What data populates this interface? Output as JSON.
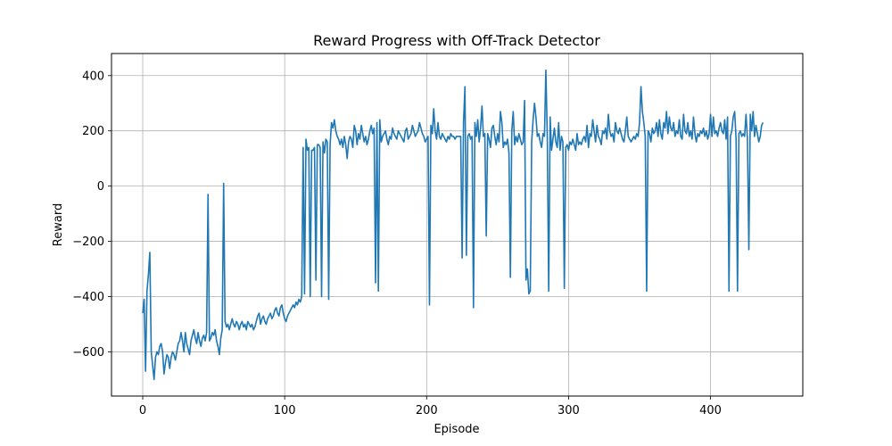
{
  "chart_data": {
    "type": "line",
    "title": "Reward Progress with Off-Track Detector",
    "xlabel": "Episode",
    "ylabel": "Reward",
    "xlim": [
      -22,
      465
    ],
    "ylim": [
      -760,
      480
    ],
    "x_ticks": [
      0,
      100,
      200,
      300,
      400
    ],
    "x_tick_labels": [
      "0",
      "100",
      "200",
      "300",
      "400"
    ],
    "y_ticks": [
      -600,
      -400,
      -200,
      0,
      200,
      400
    ],
    "y_tick_labels": [
      "−600",
      "−400",
      "−200",
      "0",
      "200",
      "400"
    ],
    "grid": true,
    "series": [
      {
        "color": "#1f77b4",
        "x_start": 0,
        "x_step": 1,
        "values": [
          -460,
          -410,
          -670,
          -380,
          -320,
          -240,
          -600,
          -650,
          -700,
          -620,
          -600,
          -610,
          -580,
          -570,
          -600,
          -680,
          -640,
          -610,
          -620,
          -660,
          -620,
          -600,
          -610,
          -630,
          -600,
          -570,
          -560,
          -530,
          -560,
          -600,
          -530,
          -570,
          -590,
          -610,
          -560,
          -540,
          -520,
          -550,
          -570,
          -530,
          -560,
          -580,
          -550,
          -540,
          -560,
          -530,
          -30,
          -560,
          -550,
          -530,
          -540,
          -520,
          -560,
          -580,
          -610,
          -550,
          -520,
          10,
          -490,
          -510,
          -500,
          -520,
          -500,
          -480,
          -500,
          -510,
          -490,
          -500,
          -520,
          -500,
          -490,
          -510,
          -500,
          -520,
          -490,
          -500,
          -510,
          -500,
          -520,
          -510,
          -490,
          -470,
          -460,
          -500,
          -480,
          -470,
          -490,
          -500,
          -480,
          -470,
          -460,
          -480,
          -470,
          -450,
          -440,
          -460,
          -470,
          -440,
          -430,
          -460,
          -480,
          -490,
          -470,
          -460,
          -450,
          -440,
          -430,
          -440,
          -420,
          -430,
          -410,
          -420,
          -400,
          140,
          -390,
          170,
          130,
          140,
          -400,
          130,
          130,
          140,
          -340,
          150,
          150,
          140,
          -400,
          160,
          120,
          170,
          160,
          -410,
          150,
          230,
          210,
          240,
          200,
          180,
          170,
          150,
          170,
          140,
          180,
          150,
          100,
          160,
          180,
          170,
          140,
          220,
          200,
          150,
          190,
          170,
          220,
          190,
          160,
          180,
          150,
          170,
          200,
          220,
          190,
          210,
          -350,
          230,
          -380,
          240,
          160,
          180,
          190,
          200,
          170,
          150,
          180,
          170,
          210,
          190,
          180,
          170,
          200,
          190,
          180,
          170,
          160,
          200,
          210,
          170,
          180,
          190,
          220,
          200,
          180,
          190,
          200,
          230,
          210,
          190,
          180,
          160,
          170,
          180,
          -430,
          220,
          190,
          280,
          200,
          170,
          230,
          180,
          170,
          190,
          180,
          170,
          160,
          180,
          170,
          190,
          180,
          180,
          170,
          180,
          180,
          180,
          180,
          -260,
          230,
          360,
          -250,
          180,
          190,
          170,
          180,
          -440,
          230,
          180,
          240,
          160,
          210,
          290,
          180,
          190,
          -180,
          190,
          170,
          140,
          210,
          220,
          180,
          150,
          190,
          160,
          270,
          230,
          140,
          160,
          150,
          170,
          120,
          -330,
          200,
          270,
          150,
          180,
          160,
          190,
          170,
          150,
          160,
          310,
          -340,
          -300,
          -390,
          -380,
          160,
          240,
          300,
          250,
          180,
          190,
          160,
          140,
          190,
          180,
          420,
          180,
          -380,
          250,
          130,
          170,
          210,
          160,
          140,
          230,
          130,
          180,
          160,
          -370,
          140,
          150,
          130,
          160,
          150,
          170,
          150,
          130,
          190,
          150,
          160,
          150,
          170,
          180,
          160,
          220,
          140,
          190,
          180,
          240,
          200,
          160,
          220,
          180,
          170,
          150,
          200,
          190,
          210,
          170,
          260,
          200,
          180,
          190,
          160,
          230,
          200,
          190,
          210,
          190,
          170,
          160,
          200,
          250,
          180,
          170,
          160,
          170,
          180,
          170,
          190,
          180,
          230,
          360,
          270,
          230,
          180,
          -380,
          200,
          190,
          160,
          210,
          190,
          200,
          230,
          180,
          240,
          190,
          170,
          230,
          210,
          270,
          190,
          250,
          210,
          200,
          230,
          180,
          200,
          190,
          240,
          180,
          170,
          260,
          200,
          190,
          230,
          180,
          200,
          170,
          250,
          190,
          160,
          190,
          180,
          200,
          190,
          210,
          180,
          200,
          170,
          190,
          260,
          180,
          250,
          190,
          200,
          180,
          210,
          230,
          200,
          190,
          240,
          170,
          250,
          -380,
          180,
          200,
          250,
          270,
          170,
          -380,
          190,
          200,
          180,
          190,
          180,
          260,
          170,
          -230,
          260,
          200,
          270,
          180,
          220,
          190,
          160,
          180,
          220,
          230
        ]
      }
    ]
  }
}
